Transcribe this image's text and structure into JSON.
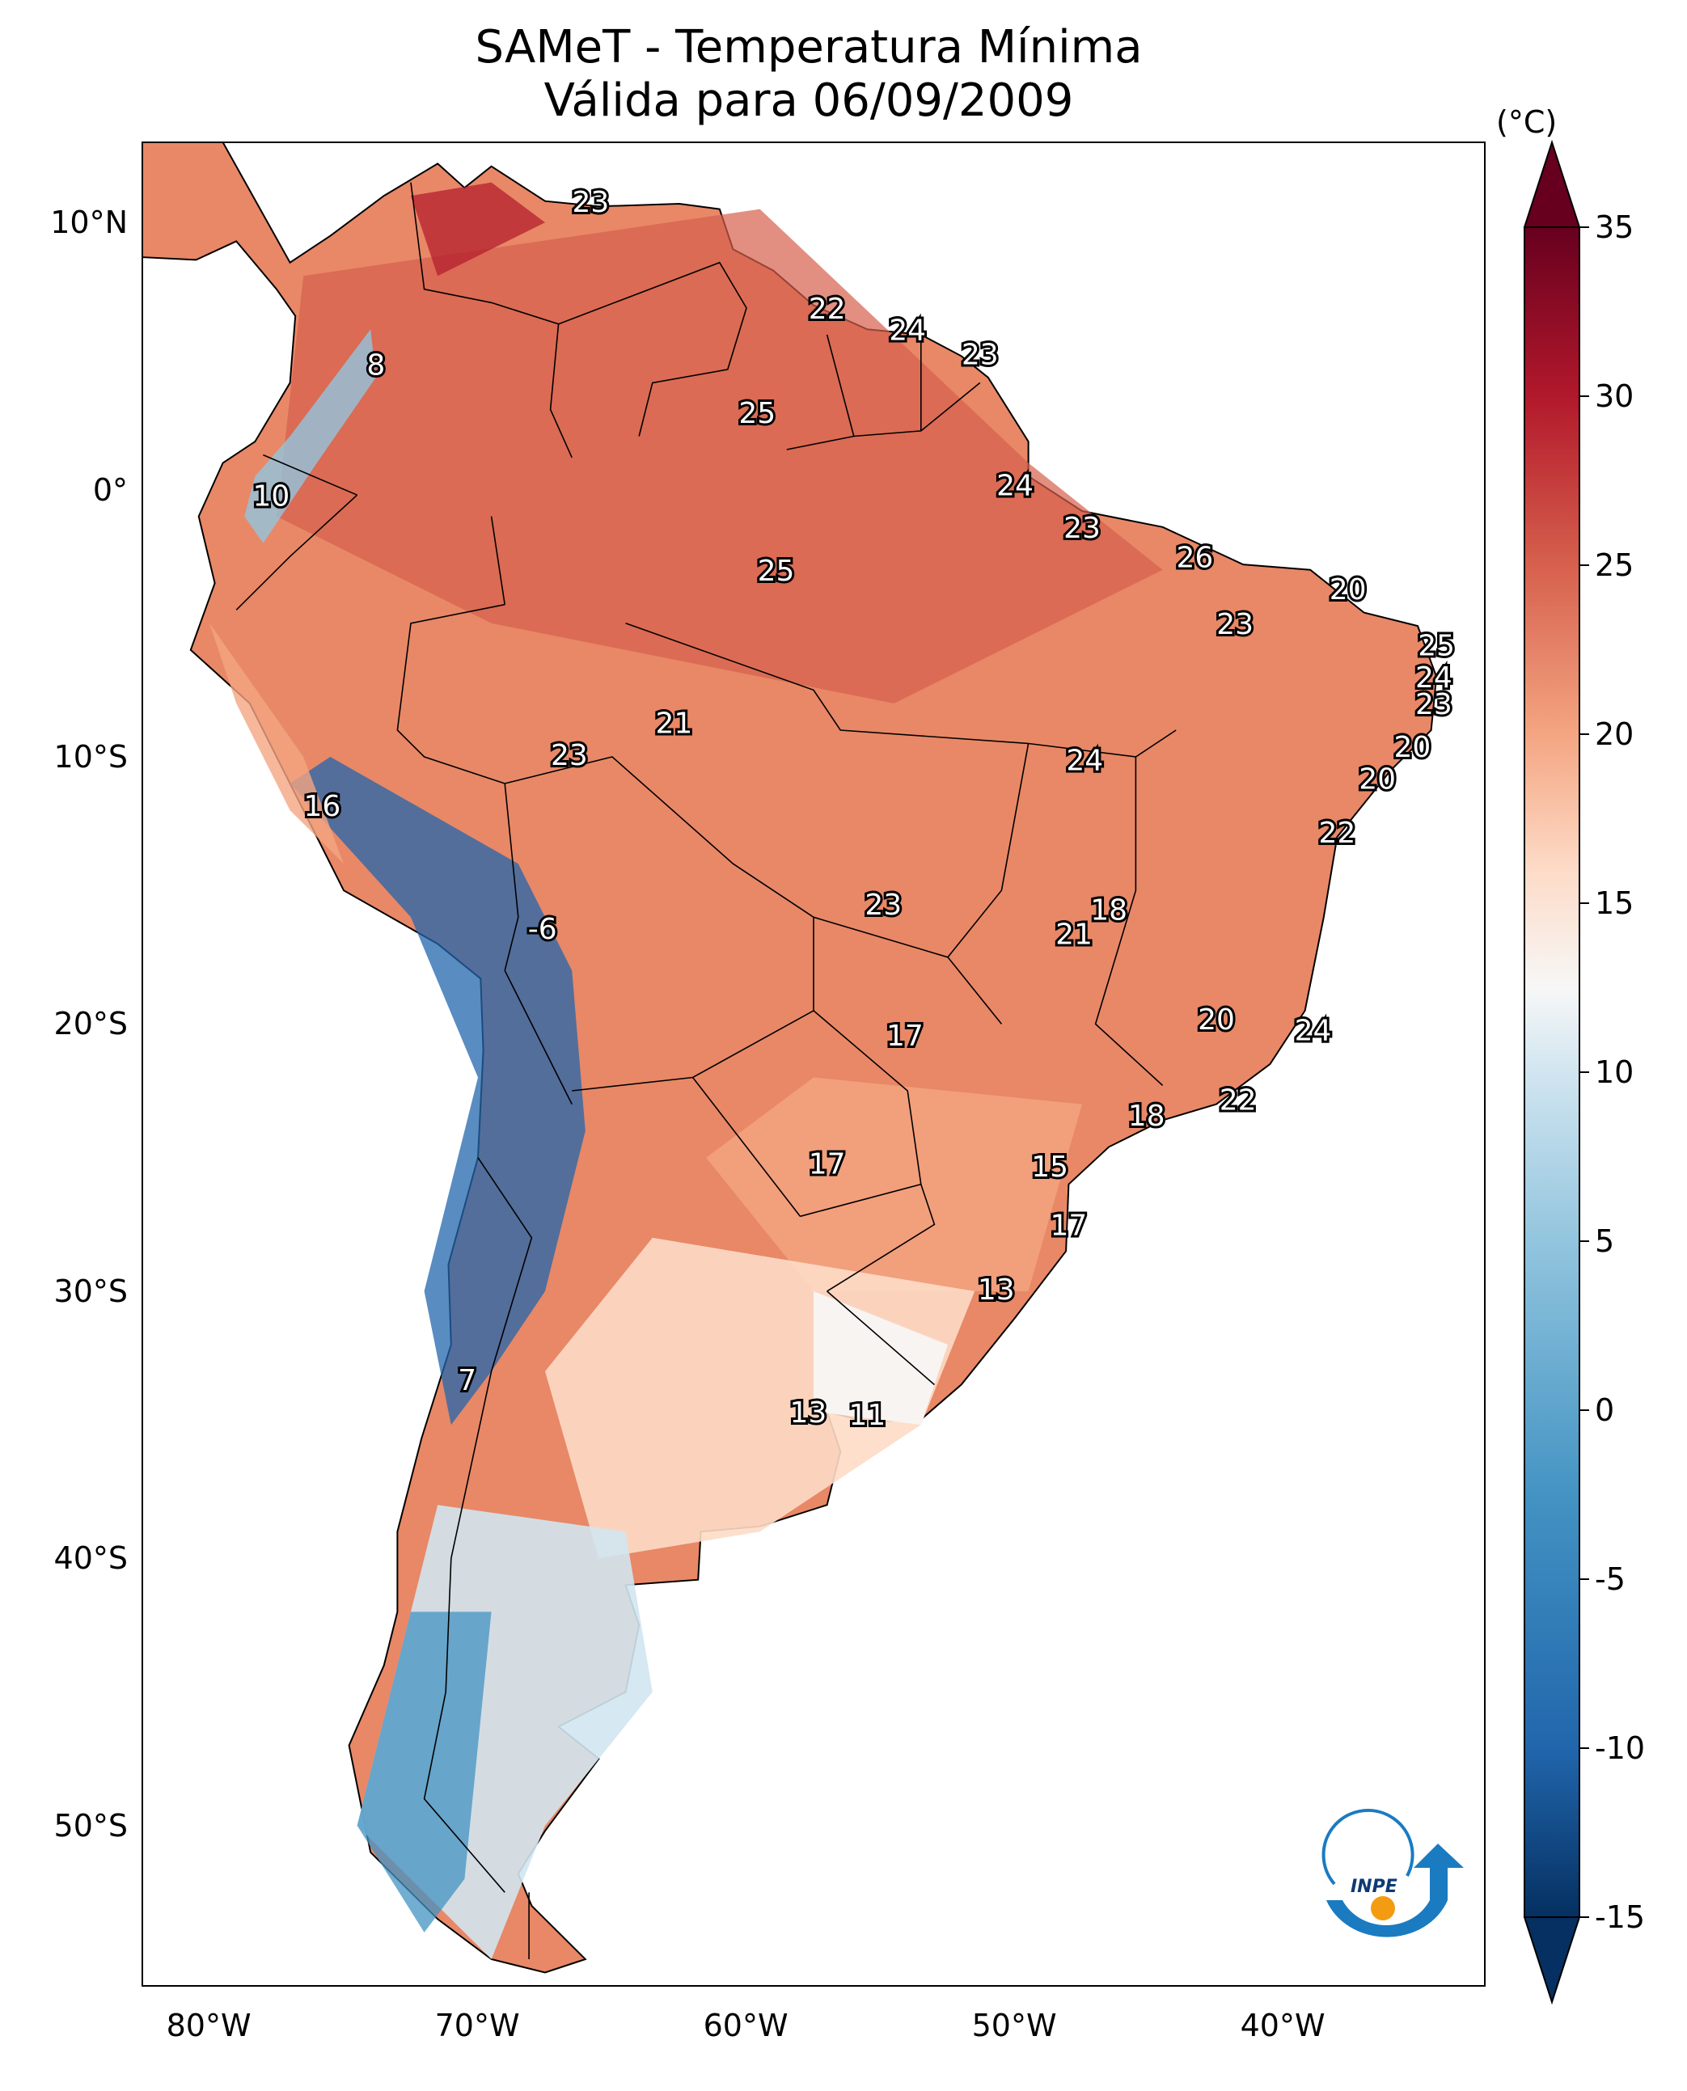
{
  "title": "SAMeT - Temperatura Mínima",
  "subtitle": "Válida para 06/09/2009",
  "colorbar": {
    "unit": "(°C)",
    "ticks": [
      "35",
      "30",
      "25",
      "20",
      "15",
      "10",
      "5",
      "0",
      "-5",
      "-10",
      "-15"
    ],
    "range": [
      -15,
      35
    ],
    "colormap": [
      "#053061",
      "#2166ac",
      "#4393c3",
      "#92c5de",
      "#d1e5f0",
      "#f7f7f7",
      "#fddbc7",
      "#f4a582",
      "#d6604d",
      "#b2182b",
      "#67001f"
    ]
  },
  "axes": {
    "lat_ticks": [
      "10°N",
      "0°",
      "10°S",
      "20°S",
      "30°S",
      "40°S",
      "50°S"
    ],
    "lon_ticks": [
      "80°W",
      "70°W",
      "60°W",
      "50°W",
      "40°W"
    ]
  },
  "station_labels": [
    {
      "text": "23",
      "lon": -66.3,
      "lat": 10.7
    },
    {
      "text": "22",
      "lon": -57.5,
      "lat": 6.7
    },
    {
      "text": "24",
      "lon": -54.5,
      "lat": 5.9
    },
    {
      "text": "23",
      "lon": -51.8,
      "lat": 5.0
    },
    {
      "text": "8",
      "lon": -74.3,
      "lat": 4.6
    },
    {
      "text": "25",
      "lon": -60.1,
      "lat": 2.8
    },
    {
      "text": "24",
      "lon": -50.5,
      "lat": 0.1
    },
    {
      "text": "10",
      "lon": -78.2,
      "lat": -0.3
    },
    {
      "text": "23",
      "lon": -48.0,
      "lat": -1.5
    },
    {
      "text": "26",
      "lon": -43.8,
      "lat": -2.6
    },
    {
      "text": "25",
      "lon": -59.4,
      "lat": -3.1
    },
    {
      "text": "20",
      "lon": -38.1,
      "lat": -3.8
    },
    {
      "text": "23",
      "lon": -42.3,
      "lat": -5.1
    },
    {
      "text": "25",
      "lon": -34.8,
      "lat": -5.9
    },
    {
      "text": "24",
      "lon": -34.9,
      "lat": -7.1
    },
    {
      "text": "23",
      "lon": -34.9,
      "lat": -8.1
    },
    {
      "text": "21",
      "lon": -63.2,
      "lat": -8.8
    },
    {
      "text": "20",
      "lon": -35.7,
      "lat": -9.7
    },
    {
      "text": "23",
      "lon": -67.1,
      "lat": -10.0
    },
    {
      "text": "24",
      "lon": -47.9,
      "lat": -10.2
    },
    {
      "text": "20",
      "lon": -37.0,
      "lat": -10.9
    },
    {
      "text": "16",
      "lon": -76.3,
      "lat": -11.9
    },
    {
      "text": "22",
      "lon": -38.5,
      "lat": -12.9
    },
    {
      "text": "18",
      "lon": -47.0,
      "lat": -15.8
    },
    {
      "text": "23",
      "lon": -55.4,
      "lat": -15.6
    },
    {
      "text": "21",
      "lon": -48.3,
      "lat": -16.7
    },
    {
      "text": "-6",
      "lon": -68.1,
      "lat": -16.5
    },
    {
      "text": "20",
      "lon": -43.0,
      "lat": -19.9
    },
    {
      "text": "24",
      "lon": -39.4,
      "lat": -20.3
    },
    {
      "text": "17",
      "lon": -54.6,
      "lat": -20.5
    },
    {
      "text": "22",
      "lon": -42.2,
      "lat": -22.9
    },
    {
      "text": "18",
      "lon": -45.6,
      "lat": -23.5
    },
    {
      "text": "17",
      "lon": -57.5,
      "lat": -25.3
    },
    {
      "text": "15",
      "lon": -49.2,
      "lat": -25.4
    },
    {
      "text": "17",
      "lon": -48.5,
      "lat": -27.6
    },
    {
      "text": "13",
      "lon": -51.2,
      "lat": -30.0
    },
    {
      "text": "7",
      "lon": -70.9,
      "lat": -33.4
    },
    {
      "text": "13",
      "lon": -58.2,
      "lat": -34.6
    },
    {
      "text": "11",
      "lon": -56.0,
      "lat": -34.7
    }
  ]
}
